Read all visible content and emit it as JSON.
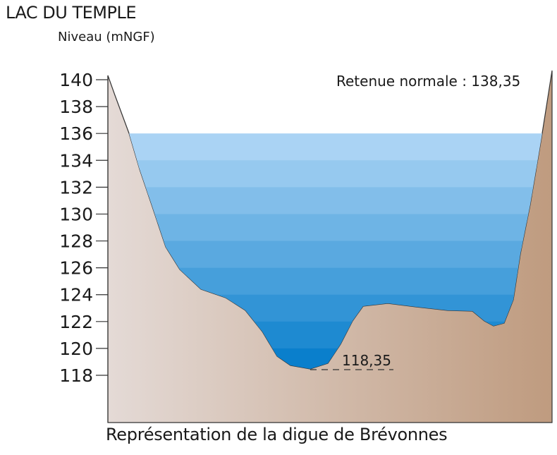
{
  "header": {
    "title": "LAC DU TEMPLE",
    "ylabel": "Niveau (mNGF)"
  },
  "caption": "Représentation de la digue de Brévonnes",
  "annotations": {
    "retenue_normale": "Retenue normale : 138,35",
    "fond": "118,35"
  },
  "axis": {
    "ticks": [
      "140",
      "138",
      "136",
      "134",
      "132",
      "130",
      "128",
      "126",
      "124",
      "122",
      "120",
      "118"
    ]
  },
  "colors": {
    "ground_left": "#e4dad6",
    "ground_right": "#bf9b7f",
    "water_top": "#aad3f4",
    "water_bottom": "#0a7fcc",
    "outline": "#333333"
  }
}
